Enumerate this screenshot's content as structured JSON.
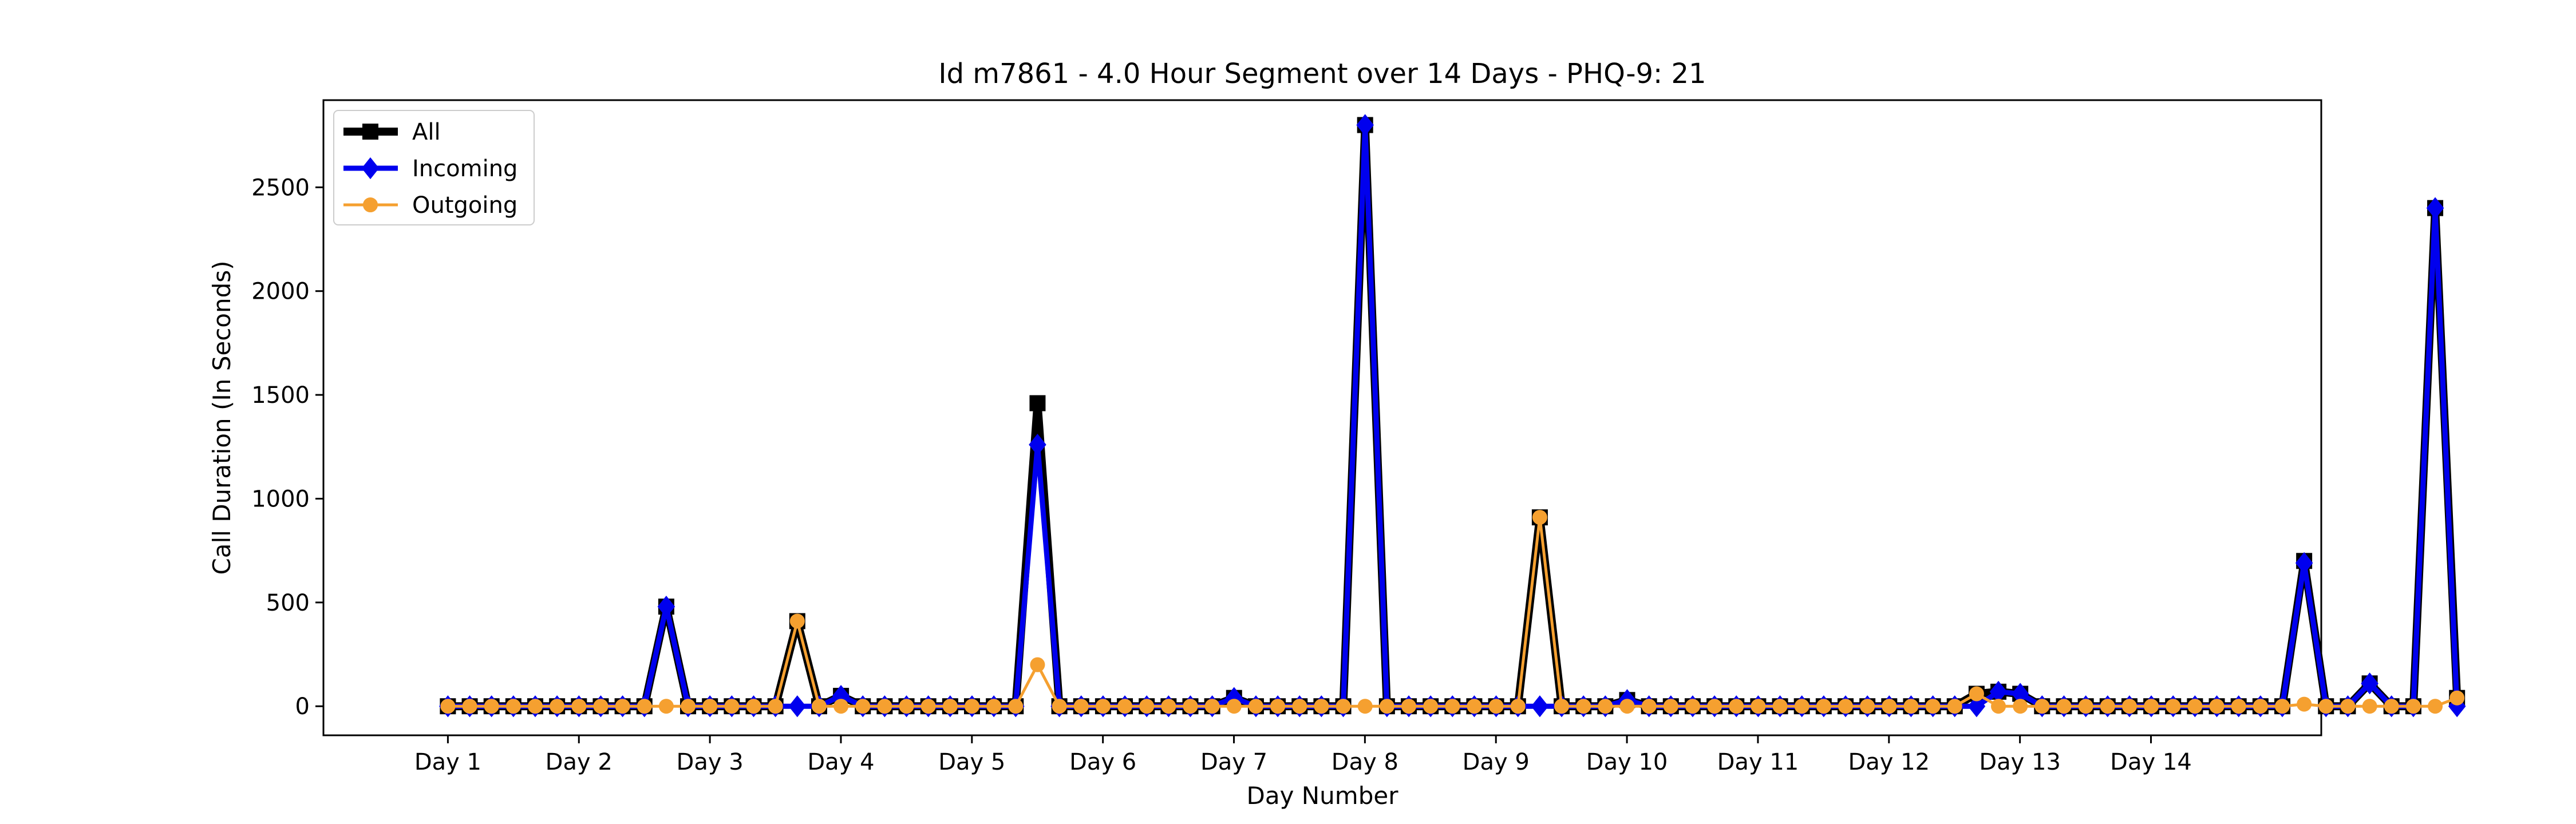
{
  "chart_data": {
    "type": "line",
    "title": "Id m7861 - 4.0 Hour Segment over 14 Days - PHQ-9: 21",
    "xlabel": "Day Number",
    "ylabel": "Call Duration (In Seconds)",
    "xlim": [
      -0.95,
      14.3
    ],
    "ylim": [
      -140,
      2920
    ],
    "x_ticks": [
      {
        "value": 0,
        "label": "Day 1"
      },
      {
        "value": 1,
        "label": "Day 2"
      },
      {
        "value": 2,
        "label": "Day 3"
      },
      {
        "value": 3,
        "label": "Day 4"
      },
      {
        "value": 4,
        "label": "Day 5"
      },
      {
        "value": 5,
        "label": "Day 6"
      },
      {
        "value": 6,
        "label": "Day 7"
      },
      {
        "value": 7,
        "label": "Day 8"
      },
      {
        "value": 8,
        "label": "Day 9"
      },
      {
        "value": 9,
        "label": "Day 10"
      },
      {
        "value": 10,
        "label": "Day 11"
      },
      {
        "value": 11,
        "label": "Day 12"
      },
      {
        "value": 12,
        "label": "Day 13"
      },
      {
        "value": 13,
        "label": "Day 14"
      }
    ],
    "y_ticks": [
      0,
      500,
      1000,
      1500,
      2000,
      2500
    ],
    "x_step": 0.1667,
    "legend_position": "top-left",
    "series": [
      {
        "name": "All",
        "color": "#000000",
        "marker": "square",
        "values": [
          0,
          0,
          0,
          0,
          0,
          0,
          0,
          0,
          0,
          0,
          480,
          0,
          0,
          0,
          0,
          0,
          410,
          0,
          50,
          0,
          0,
          0,
          0,
          0,
          0,
          0,
          0,
          1460,
          0,
          0,
          0,
          0,
          0,
          0,
          0,
          0,
          40,
          0,
          0,
          0,
          0,
          0,
          2800,
          0,
          0,
          0,
          0,
          0,
          0,
          0,
          910,
          0,
          0,
          0,
          30,
          0,
          0,
          0,
          0,
          0,
          0,
          0,
          0,
          0,
          0,
          0,
          0,
          0,
          0,
          0,
          60,
          70,
          60,
          0,
          0,
          0,
          0,
          0,
          0,
          0,
          0,
          0,
          0,
          0,
          0,
          700,
          0,
          0,
          110,
          0,
          0,
          2400,
          40
        ]
      },
      {
        "name": "Incoming",
        "color": "#0000ee",
        "marker": "diamond",
        "values": [
          0,
          0,
          0,
          0,
          0,
          0,
          0,
          0,
          0,
          0,
          480,
          0,
          0,
          0,
          0,
          0,
          0,
          0,
          50,
          0,
          0,
          0,
          0,
          0,
          0,
          0,
          0,
          1260,
          0,
          0,
          0,
          0,
          0,
          0,
          0,
          0,
          40,
          0,
          0,
          0,
          0,
          0,
          2800,
          0,
          0,
          0,
          0,
          0,
          0,
          0,
          0,
          0,
          0,
          0,
          30,
          0,
          0,
          0,
          0,
          0,
          0,
          0,
          0,
          0,
          0,
          0,
          0,
          0,
          0,
          0,
          0,
          70,
          60,
          0,
          0,
          0,
          0,
          0,
          0,
          0,
          0,
          0,
          0,
          0,
          0,
          690,
          0,
          0,
          110,
          0,
          0,
          2400,
          0
        ]
      },
      {
        "name": "Outgoing",
        "color": "#f5a030",
        "marker": "circle",
        "values": [
          0,
          0,
          0,
          0,
          0,
          0,
          0,
          0,
          0,
          0,
          0,
          0,
          0,
          0,
          0,
          0,
          410,
          0,
          0,
          0,
          0,
          0,
          0,
          0,
          0,
          0,
          0,
          200,
          0,
          0,
          0,
          0,
          0,
          0,
          0,
          0,
          0,
          0,
          0,
          0,
          0,
          0,
          0,
          0,
          0,
          0,
          0,
          0,
          0,
          0,
          910,
          0,
          0,
          0,
          0,
          0,
          0,
          0,
          0,
          0,
          0,
          0,
          0,
          0,
          0,
          0,
          0,
          0,
          0,
          0,
          60,
          0,
          0,
          0,
          0,
          0,
          0,
          0,
          0,
          0,
          0,
          0,
          0,
          0,
          0,
          10,
          0,
          0,
          0,
          0,
          0,
          0,
          40
        ]
      }
    ]
  }
}
